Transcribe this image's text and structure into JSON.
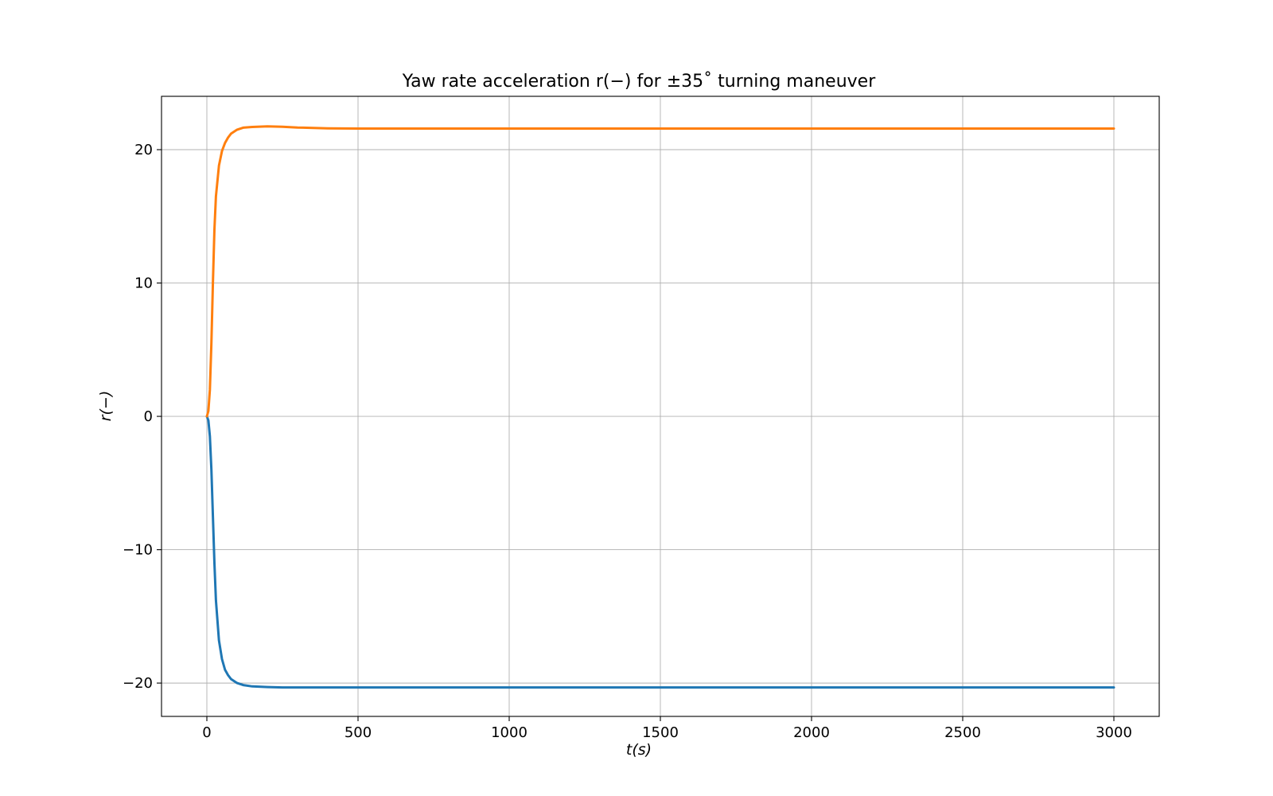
{
  "chart_data": {
    "type": "line",
    "title": "Yaw rate acceleration r(−) for ±35˚ turning maneuver",
    "xlabel": "t(s)",
    "ylabel": "r(−)",
    "xlim": [
      -150,
      3150
    ],
    "ylim": [
      -22.5,
      24
    ],
    "xticks": [
      0,
      500,
      1000,
      1500,
      2000,
      2500,
      3000
    ],
    "xtick_labels": [
      "0",
      "500",
      "1000",
      "1500",
      "2000",
      "2500",
      "3000"
    ],
    "yticks": [
      -20,
      -10,
      0,
      10,
      20
    ],
    "ytick_labels": [
      "−20",
      "−10",
      "0",
      "10",
      "20"
    ],
    "grid": true,
    "legend": "none",
    "series": [
      {
        "color": "#1f77b4",
        "x": [
          0,
          5,
          10,
          15,
          20,
          25,
          30,
          40,
          50,
          60,
          70,
          80,
          100,
          120,
          150,
          200,
          250,
          300,
          400,
          500,
          1000,
          1500,
          2000,
          2500,
          3000
        ],
        "y": [
          0,
          -0.3,
          -1.5,
          -4.0,
          -7.5,
          -11.0,
          -13.8,
          -16.8,
          -18.2,
          -19.0,
          -19.4,
          -19.7,
          -20.0,
          -20.15,
          -20.25,
          -20.3,
          -20.33,
          -20.33,
          -20.33,
          -20.33,
          -20.33,
          -20.33,
          -20.33,
          -20.33,
          -20.33
        ]
      },
      {
        "color": "#ff7f0e",
        "x": [
          0,
          5,
          10,
          15,
          20,
          25,
          30,
          40,
          50,
          60,
          70,
          80,
          100,
          120,
          150,
          200,
          250,
          300,
          400,
          500,
          1000,
          1500,
          2000,
          2500,
          3000
        ],
        "y": [
          0,
          0.4,
          2.0,
          5.5,
          10.0,
          14.0,
          16.5,
          18.8,
          19.9,
          20.5,
          20.9,
          21.2,
          21.5,
          21.65,
          21.7,
          21.75,
          21.72,
          21.66,
          21.6,
          21.58,
          21.58,
          21.58,
          21.58,
          21.58,
          21.58
        ]
      }
    ]
  }
}
